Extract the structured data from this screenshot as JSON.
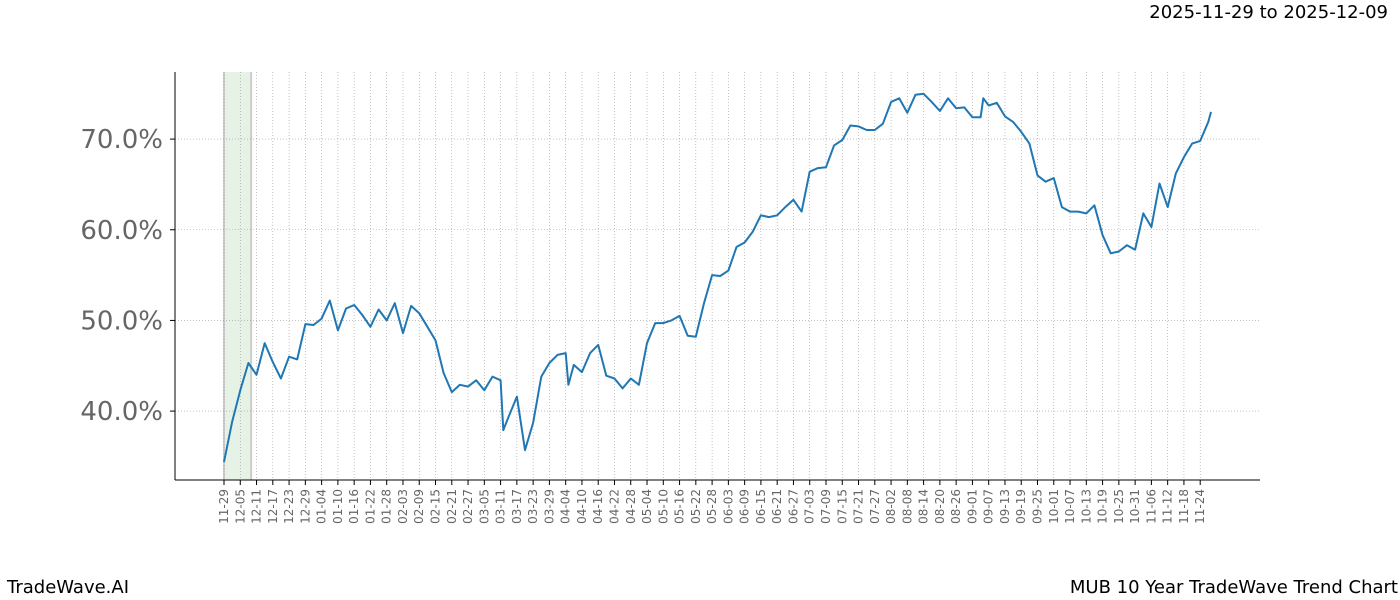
{
  "header": {
    "date_range": "2025-11-29 to 2025-12-09"
  },
  "footer": {
    "brand": "TradeWave.AI",
    "chart_title": "MUB 10 Year TradeWave Trend Chart"
  },
  "chart_data": {
    "type": "line",
    "title": "MUB 10 Year TradeWave Trend Chart",
    "xlabel": "",
    "ylabel": "",
    "ylim": [
      32.4,
      77.4
    ],
    "yticks": [
      40,
      50,
      60,
      70
    ],
    "ytick_labels": [
      "40.0%",
      "50.0%",
      "60.0%",
      "70.0%"
    ],
    "xtick_labels": [
      "11-29",
      "12-05",
      "12-11",
      "12-17",
      "12-23",
      "12-29",
      "01-04",
      "01-10",
      "01-16",
      "01-22",
      "01-28",
      "02-03",
      "02-09",
      "02-15",
      "02-21",
      "02-27",
      "03-05",
      "03-11",
      "03-17",
      "03-23",
      "03-29",
      "04-04",
      "04-10",
      "04-16",
      "04-22",
      "04-28",
      "05-04",
      "05-10",
      "05-16",
      "05-22",
      "05-28",
      "06-03",
      "06-09",
      "06-15",
      "06-21",
      "06-27",
      "07-03",
      "07-09",
      "07-15",
      "07-21",
      "07-27",
      "08-02",
      "08-08",
      "08-14",
      "08-20",
      "08-26",
      "09-01",
      "09-07",
      "09-13",
      "09-19",
      "09-25",
      "10-01",
      "10-07",
      "10-13",
      "10-19",
      "10-25",
      "10-31",
      "11-06",
      "11-12",
      "11-18",
      "11-24"
    ],
    "grid": true,
    "highlight_range": [
      "11-29",
      "12-09"
    ],
    "colors": {
      "line": "#1f77b4",
      "highlight": "#e6f2e6",
      "grid": "#999999",
      "tick_text": "#666666"
    },
    "x": [
      "11-29",
      "12-02",
      "12-05",
      "12-08",
      "12-11",
      "12-14",
      "12-17",
      "12-20",
      "12-23",
      "12-26",
      "12-29",
      "01-01",
      "01-04",
      "01-07",
      "01-10",
      "01-13",
      "01-16",
      "01-19",
      "01-22",
      "01-25",
      "01-28",
      "01-31",
      "02-03",
      "02-06",
      "02-09",
      "02-12",
      "02-15",
      "02-18",
      "02-21",
      "02-24",
      "02-27",
      "03-02",
      "03-05",
      "03-08",
      "03-11",
      "03-12",
      "03-14",
      "03-17",
      "03-20",
      "03-23",
      "03-26",
      "03-29",
      "04-01",
      "04-04",
      "04-05",
      "04-07",
      "04-10",
      "04-13",
      "04-16",
      "04-19",
      "04-22",
      "04-25",
      "04-28",
      "05-01",
      "05-04",
      "05-07",
      "05-10",
      "05-13",
      "05-16",
      "05-19",
      "05-22",
      "05-25",
      "05-28",
      "05-31",
      "06-03",
      "06-06",
      "06-09",
      "06-12",
      "06-15",
      "06-18",
      "06-21",
      "06-24",
      "06-27",
      "06-30",
      "07-03",
      "07-06",
      "07-09",
      "07-12",
      "07-15",
      "07-18",
      "07-21",
      "07-24",
      "07-27",
      "07-30",
      "08-02",
      "08-05",
      "08-08",
      "08-11",
      "08-14",
      "08-17",
      "08-20",
      "08-23",
      "08-26",
      "08-29",
      "09-01",
      "09-04",
      "09-05",
      "09-07",
      "09-10",
      "09-13",
      "09-16",
      "09-19",
      "09-22",
      "09-25",
      "09-28",
      "10-01",
      "10-04",
      "10-07",
      "10-10",
      "10-13",
      "10-16",
      "10-19",
      "10-22",
      "10-25",
      "10-28",
      "10-31",
      "11-03",
      "11-06",
      "11-09",
      "11-12",
      "11-15",
      "11-18",
      "11-21",
      "11-24",
      "11-27",
      "11-28"
    ],
    "values": [
      34.4,
      38.8,
      42.3,
      45.3,
      44.0,
      47.5,
      45.4,
      43.6,
      46.0,
      45.7,
      49.6,
      49.5,
      50.2,
      52.2,
      48.9,
      51.3,
      51.7,
      50.6,
      49.3,
      51.2,
      50.0,
      51.9,
      48.6,
      51.6,
      50.8,
      49.3,
      47.8,
      44.2,
      42.1,
      42.9,
      42.7,
      43.4,
      42.3,
      43.8,
      43.4,
      37.9,
      39.4,
      41.6,
      35.7,
      38.7,
      43.8,
      45.3,
      46.2,
      46.4,
      42.9,
      45.1,
      44.3,
      46.4,
      47.3,
      43.9,
      43.6,
      42.5,
      43.6,
      42.9,
      47.5,
      49.7,
      49.7,
      50.0,
      50.5,
      48.3,
      48.2,
      51.9,
      55.0,
      54.9,
      55.5,
      58.1,
      58.6,
      59.8,
      61.6,
      61.4,
      61.6,
      62.5,
      63.3,
      62.0,
      66.4,
      66.8,
      66.9,
      69.3,
      69.9,
      71.5,
      71.4,
      71.0,
      71.0,
      71.7,
      74.1,
      74.5,
      72.9,
      74.9,
      75.0,
      74.1,
      73.1,
      74.5,
      73.4,
      73.5,
      72.4,
      72.4,
      74.5,
      73.7,
      74.0,
      72.5,
      71.9,
      70.8,
      69.5,
      66.0,
      65.3,
      65.7,
      62.5,
      62.0,
      62.0,
      61.8,
      62.7,
      59.4,
      57.4,
      57.6,
      58.3,
      57.8,
      61.8,
      60.3,
      65.1,
      62.5,
      66.2,
      68.0,
      69.5,
      69.8,
      71.9,
      73.0
    ]
  }
}
